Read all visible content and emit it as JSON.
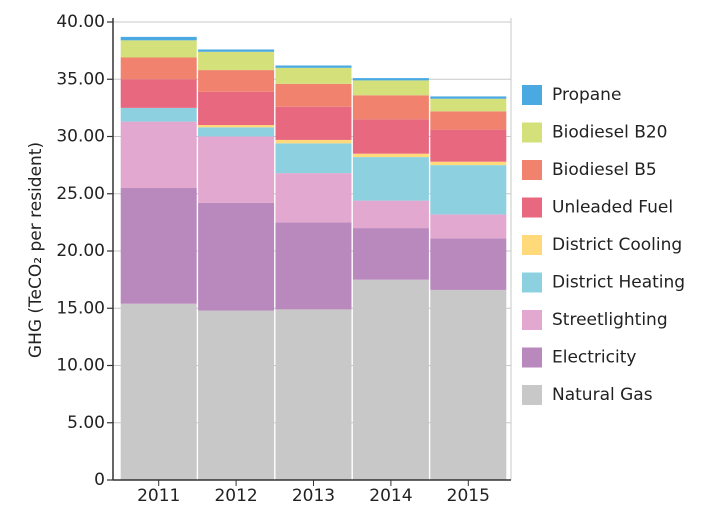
{
  "chart_data": {
    "type": "stacked_bar",
    "y_label": "GHG (TeCO₂ per resident)",
    "categories": [
      "2011",
      "2012",
      "2013",
      "2014",
      "2015"
    ],
    "series": [
      {
        "name": "Natural Gas",
        "color": "#c8c8c8",
        "values": [
          15.4,
          14.8,
          14.9,
          17.5,
          16.6
        ]
      },
      {
        "name": "Electricity",
        "color": "#b988bd",
        "values": [
          10.1,
          9.4,
          7.6,
          4.5,
          4.5
        ]
      },
      {
        "name": "Streetlighting",
        "color": "#e3a8cf",
        "values": [
          5.8,
          5.8,
          4.3,
          2.4,
          2.1
        ]
      },
      {
        "name": "District Heating",
        "color": "#8dd0e0",
        "values": [
          1.2,
          0.8,
          2.6,
          3.8,
          4.3
        ]
      },
      {
        "name": "District Cooling",
        "color": "#ffd97a",
        "values": [
          0,
          0.2,
          0.3,
          0.3,
          0.3
        ]
      },
      {
        "name": "Unleaded Fuel",
        "color": "#e8687f",
        "values": [
          2.5,
          2.9,
          2.9,
          3.0,
          2.8
        ]
      },
      {
        "name": "Biodiesel B5",
        "color": "#f0826e",
        "values": [
          1.9,
          1.9,
          2.0,
          2.1,
          1.6
        ]
      },
      {
        "name": "Biodiesel B20",
        "color": "#d4e07a",
        "values": [
          1.5,
          1.6,
          1.4,
          1.3,
          1.1
        ]
      },
      {
        "name": "Propane",
        "color": "#4aa9e0",
        "values": [
          0.3,
          0.2,
          0.2,
          0.2,
          0.2
        ]
      }
    ],
    "ylim": [
      0,
      40
    ],
    "yticks": [
      0,
      {
        "value": 5,
        "label": "5.00"
      },
      {
        "value": 10,
        "label": "10.00"
      },
      {
        "value": 15,
        "label": "15.00"
      },
      {
        "value": 20,
        "label": "20.00"
      },
      {
        "value": 25,
        "label": "25.00"
      },
      {
        "value": 30,
        "label": "30.00"
      },
      {
        "value": 35,
        "label": "35.00"
      },
      {
        "value": 40,
        "label": "40.00"
      }
    ],
    "grid": true
  }
}
